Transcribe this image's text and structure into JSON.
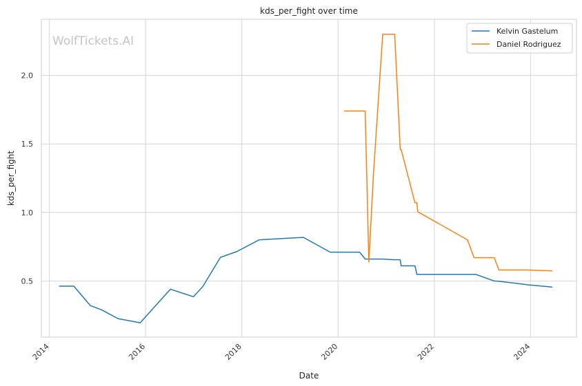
{
  "watermark": "WolfTickets.AI",
  "chart_data": {
    "type": "line",
    "title": "kds_per_fight over time",
    "xlabel": "Date",
    "ylabel": "kds_per_fight",
    "x_ticks": [
      "2014",
      "2016",
      "2018",
      "2020",
      "2022",
      "2024"
    ],
    "y_ticks": [
      "0.5",
      "1.0",
      "1.5",
      "2.0"
    ],
    "xlim": [
      "2013-11-01",
      "2024-12-15"
    ],
    "ylim": [
      0.09,
      2.41
    ],
    "grid": true,
    "legend_position": "top-right",
    "series": [
      {
        "name": "Kelvin Gastelum",
        "color": "#1f77b4",
        "points": [
          [
            "2014-03-15",
            0.462
          ],
          [
            "2014-07-05",
            0.462
          ],
          [
            "2014-11-08",
            0.32
          ],
          [
            "2015-01-31",
            0.29
          ],
          [
            "2015-06-06",
            0.225
          ],
          [
            "2015-11-21",
            0.195
          ],
          [
            "2016-07-08",
            0.44
          ],
          [
            "2016-12-30",
            0.385
          ],
          [
            "2017-03-11",
            0.46
          ],
          [
            "2017-07-22",
            0.672
          ],
          [
            "2017-11-25",
            0.715
          ],
          [
            "2018-05-12",
            0.8
          ],
          [
            "2019-04-13",
            0.818
          ],
          [
            "2019-11-02",
            0.71
          ],
          [
            "2020-03-14",
            0.71
          ],
          [
            "2020-06-13",
            0.71
          ],
          [
            "2020-07-25",
            0.66
          ],
          [
            "2020-08-15",
            0.66
          ],
          [
            "2020-12-05",
            0.66
          ],
          [
            "2021-02-27",
            0.655
          ],
          [
            "2021-04-17",
            0.655
          ],
          [
            "2021-04-24",
            0.61
          ],
          [
            "2021-08-07",
            0.61
          ],
          [
            "2021-08-21",
            0.548
          ],
          [
            "2022-11-12",
            0.548
          ],
          [
            "2023-04-01",
            0.5
          ],
          [
            "2023-05-06",
            0.498
          ],
          [
            "2023-12-09",
            0.472
          ],
          [
            "2024-06-15",
            0.455
          ]
        ]
      },
      {
        "name": "Daniel Rodriguez",
        "color": "#ff7f0e",
        "points": [
          [
            "2020-02-15",
            1.74
          ],
          [
            "2020-07-25",
            1.74
          ],
          [
            "2020-08-22",
            0.638
          ],
          [
            "2020-09-26",
            1.28
          ],
          [
            "2020-12-05",
            2.3
          ],
          [
            "2021-03-06",
            2.3
          ],
          [
            "2021-04-17",
            1.46
          ],
          [
            "2021-04-24",
            1.46
          ],
          [
            "2021-08-07",
            1.07
          ],
          [
            "2021-08-21",
            1.07
          ],
          [
            "2021-08-28",
            1.005
          ],
          [
            "2022-09-10",
            0.8
          ],
          [
            "2022-10-29",
            0.67
          ],
          [
            "2023-04-01",
            0.67
          ],
          [
            "2023-05-06",
            0.58
          ],
          [
            "2023-12-09",
            0.58
          ],
          [
            "2024-06-15",
            0.573
          ]
        ]
      }
    ]
  }
}
